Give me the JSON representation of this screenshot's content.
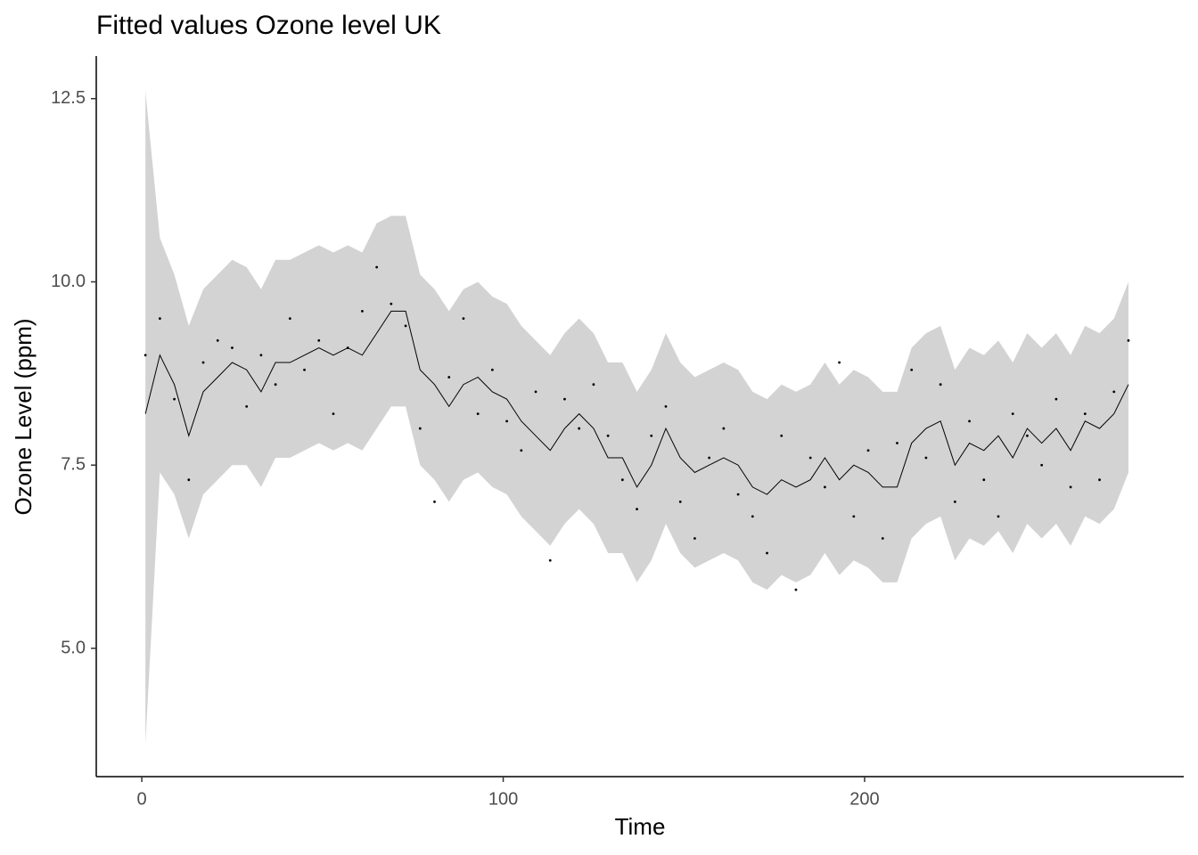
{
  "chart_data": {
    "type": "line",
    "title": "Fitted values Ozone level UK",
    "x_label": "Time",
    "y_label": "Ozone Level (ppm)",
    "x": [
      1,
      5,
      9,
      13,
      17,
      21,
      25,
      29,
      33,
      37,
      41,
      45,
      49,
      53,
      57,
      61,
      65,
      69,
      73,
      77,
      81,
      85,
      89,
      93,
      97,
      101,
      105,
      109,
      113,
      117,
      121,
      125,
      129,
      133,
      137,
      141,
      145,
      149,
      153,
      157,
      161,
      165,
      169,
      173,
      177,
      181,
      185,
      189,
      193,
      197,
      201,
      205,
      209,
      213,
      217,
      221,
      225,
      229,
      233,
      237,
      241,
      245,
      249,
      253,
      257,
      261,
      265,
      269,
      273
    ],
    "series": [
      {
        "color": "#000000",
        "values": [
          8.2,
          9.0,
          8.6,
          7.9,
          8.5,
          8.7,
          8.9,
          8.8,
          8.5,
          8.9,
          8.9,
          9.0,
          9.1,
          9.0,
          9.1,
          9.0,
          9.3,
          9.6,
          9.6,
          8.8,
          8.6,
          8.3,
          8.6,
          8.7,
          8.5,
          8.4,
          8.1,
          7.9,
          7.7,
          8.0,
          8.2,
          8.0,
          7.6,
          7.6,
          7.2,
          7.5,
          8.0,
          7.6,
          7.4,
          7.5,
          7.6,
          7.5,
          7.2,
          7.1,
          7.3,
          7.2,
          7.3,
          7.6,
          7.3,
          7.5,
          7.4,
          7.2,
          7.2,
          7.8,
          8.0,
          8.1,
          7.5,
          7.8,
          7.7,
          7.9,
          7.6,
          8.0,
          7.8,
          8.0,
          7.7,
          8.1,
          8.0,
          8.2,
          8.6
        ]
      }
    ],
    "band": {
      "color": "#d3d3d3",
      "upper": [
        12.6,
        10.6,
        10.1,
        9.4,
        9.9,
        10.1,
        10.3,
        10.2,
        9.9,
        10.3,
        10.3,
        10.4,
        10.5,
        10.4,
        10.5,
        10.4,
        10.8,
        10.9,
        10.9,
        10.1,
        9.9,
        9.6,
        9.9,
        10.0,
        9.8,
        9.7,
        9.4,
        9.2,
        9.0,
        9.3,
        9.5,
        9.3,
        8.9,
        8.9,
        8.5,
        8.8,
        9.3,
        8.9,
        8.7,
        8.8,
        8.9,
        8.8,
        8.5,
        8.4,
        8.6,
        8.5,
        8.6,
        8.9,
        8.6,
        8.8,
        8.7,
        8.5,
        8.5,
        9.1,
        9.3,
        9.4,
        8.8,
        9.1,
        9.0,
        9.2,
        8.9,
        9.3,
        9.1,
        9.3,
        9.0,
        9.4,
        9.3,
        9.5,
        10.0
      ],
      "lower": [
        3.7,
        7.4,
        7.1,
        6.5,
        7.1,
        7.3,
        7.5,
        7.5,
        7.2,
        7.6,
        7.6,
        7.7,
        7.8,
        7.7,
        7.8,
        7.7,
        8.0,
        8.3,
        8.3,
        7.5,
        7.3,
        7.0,
        7.3,
        7.4,
        7.2,
        7.1,
        6.8,
        6.6,
        6.4,
        6.7,
        6.9,
        6.7,
        6.3,
        6.3,
        5.9,
        6.2,
        6.7,
        6.3,
        6.1,
        6.2,
        6.3,
        6.2,
        5.9,
        5.8,
        6.0,
        5.9,
        6.0,
        6.3,
        6.0,
        6.2,
        6.1,
        5.9,
        5.9,
        6.5,
        6.7,
        6.8,
        6.2,
        6.5,
        6.4,
        6.6,
        6.3,
        6.7,
        6.5,
        6.7,
        6.4,
        6.8,
        6.7,
        6.9,
        7.4
      ]
    },
    "points": {
      "color": "#000000",
      "values": [
        9.0,
        9.5,
        8.4,
        7.3,
        8.9,
        9.2,
        9.1,
        8.3,
        9.0,
        8.6,
        9.5,
        8.8,
        9.2,
        8.2,
        9.1,
        9.6,
        10.2,
        9.7,
        9.4,
        8.0,
        7.0,
        8.7,
        9.5,
        8.2,
        8.8,
        8.1,
        7.7,
        8.5,
        6.2,
        8.4,
        8.0,
        8.6,
        7.9,
        7.3,
        6.9,
        7.9,
        8.3,
        7.0,
        6.5,
        7.6,
        8.0,
        7.1,
        6.8,
        6.3,
        7.9,
        5.8,
        7.6,
        7.2,
        8.9,
        6.8,
        7.7,
        6.5,
        7.8,
        8.8,
        7.6,
        8.6,
        7.0,
        8.1,
        7.3,
        6.8,
        8.2,
        7.9,
        7.5,
        8.4,
        7.2,
        8.2,
        7.3,
        8.5,
        9.2
      ]
    },
    "xlim": [
      -12.6,
      288.3
    ],
    "ylim": [
      3.25,
      13.08
    ],
    "xticks": [
      0,
      100,
      200
    ],
    "yticks": [
      {
        "value": 5,
        "label": "5.0"
      },
      7.5,
      {
        "value": 10,
        "label": "10.0"
      },
      12.5
    ]
  }
}
